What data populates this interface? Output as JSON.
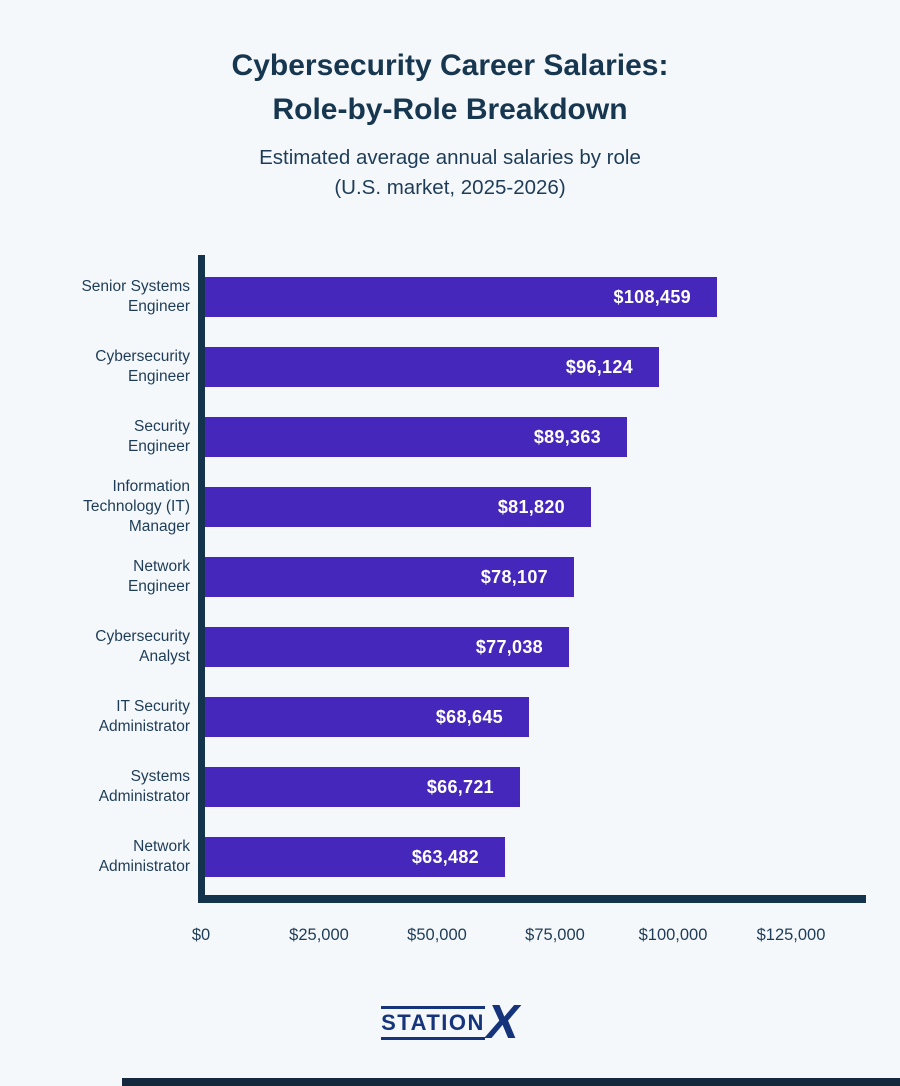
{
  "header": {
    "title": "Cybersecurity Career Salaries:\nRole-by-Role Breakdown",
    "subtitle": "Estimated average annual salaries by role\n(U.S. market, 2025-2026)"
  },
  "chart_data": {
    "type": "bar",
    "orientation": "horizontal",
    "title": "Cybersecurity Career Salaries: Role-by-Role Breakdown",
    "subtitle": "Estimated average annual salaries by role (U.S. market, 2025-2026)",
    "categories": [
      "Senior Systems\nEngineer",
      "Cybersecurity\nEngineer",
      "Security\nEngineer",
      "Information\nTechnology (IT)\nManager",
      "Network\nEngineer",
      "Cybersecurity\nAnalyst",
      "IT Security\nAdministrator",
      "Systems\nAdministrator",
      "Network\nAdministrator"
    ],
    "values": [
      108459,
      96124,
      89363,
      81820,
      78107,
      77038,
      68645,
      66721,
      63482
    ],
    "value_labels": [
      "$108,459",
      "$96,124",
      "$89,363",
      "$81,820",
      "$78,107",
      "$77,038",
      "$68,645",
      "$66,721",
      "$63,482"
    ],
    "x_ticks": [
      "$0",
      "$25,000",
      "$50,000",
      "$75,000",
      "$100,000",
      "$125,000"
    ],
    "x_range": [
      0,
      125000
    ],
    "xlabel": "",
    "ylabel": "",
    "grid": false,
    "legend": false,
    "bar_color": "#4527bb",
    "axis_color": "#14334d",
    "label_color": "#1e3c57",
    "value_text_color": "#ffffff",
    "background_color": "#f5f8fb"
  },
  "footer": {
    "logo_text": "STATION",
    "logo_x": "X"
  }
}
